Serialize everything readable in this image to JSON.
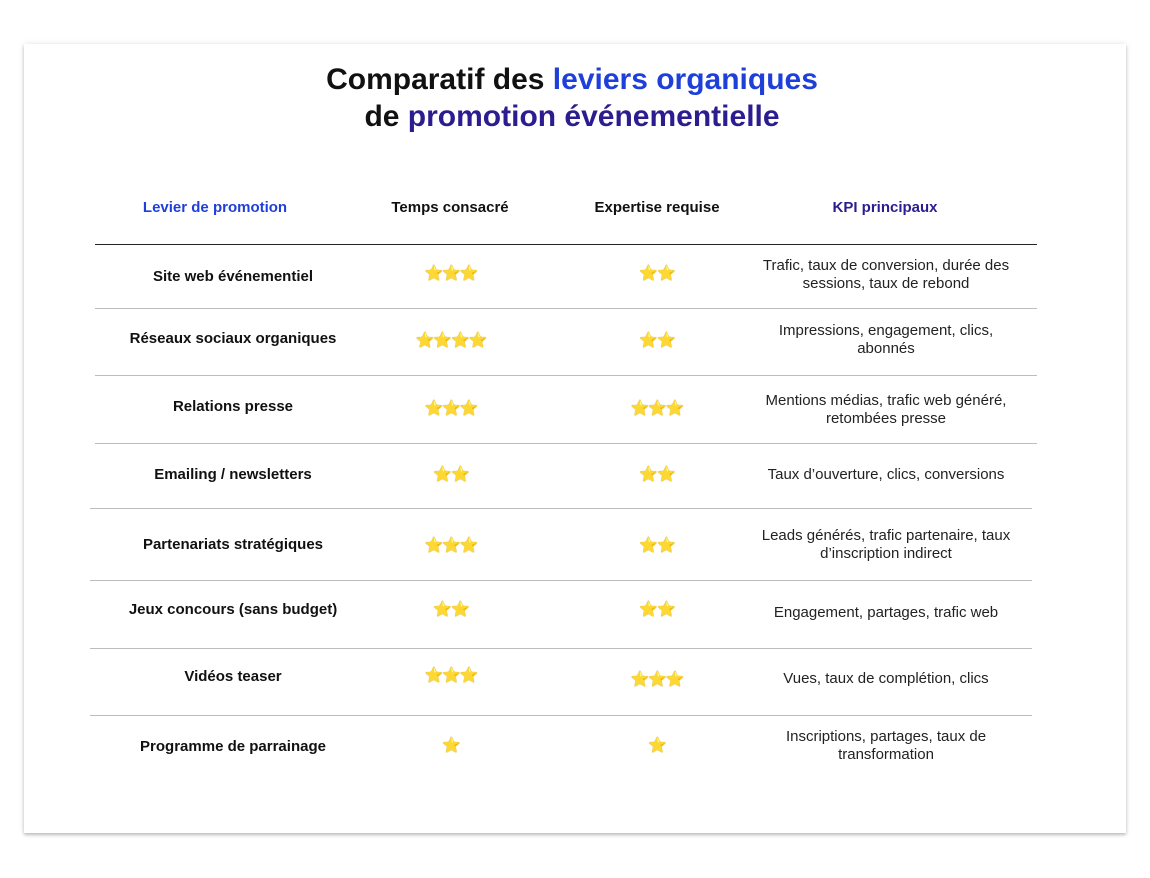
{
  "title": {
    "line1_prefix": "Comparatif des ",
    "line1_highlight": "leviers organiques",
    "line2_prefix": "de ",
    "line2_highlight": "promotion événementielle"
  },
  "table": {
    "headers": {
      "lever": "Levier de promotion",
      "time": "Temps consacré",
      "expertise": "Expertise requise",
      "kpi": "KPI principaux"
    },
    "rows": [
      {
        "lever": "Site web événementiel",
        "time": "⭐⭐⭐",
        "expertise": "⭐⭐",
        "kpi": "Trafic, taux de conversion, durée des sessions, taux de rebond"
      },
      {
        "lever": "Réseaux sociaux organiques",
        "time": "⭐⭐⭐⭐",
        "expertise": "⭐⭐",
        "kpi": "Impressions, engagement, clics, abonnés"
      },
      {
        "lever": "Relations presse",
        "time": "⭐⭐⭐",
        "expertise": "⭐⭐⭐",
        "kpi": "Mentions médias, trafic web généré, retombées presse"
      },
      {
        "lever": "Emailing / newsletters",
        "time": "⭐⭐",
        "expertise": "⭐⭐",
        "kpi": "Taux d’ouverture, clics, conversions"
      },
      {
        "lever": "Partenariats stratégiques",
        "time": "⭐⭐⭐",
        "expertise": "⭐⭐",
        "kpi": "Leads générés, trafic partenaire, taux d’inscription indirect"
      },
      {
        "lever": "Jeux concours (sans budget)",
        "time": "⭐⭐",
        "expertise": "⭐⭐",
        "kpi": "Engagement, partages, trafic web"
      },
      {
        "lever": "Vidéos teaser",
        "time": "⭐⭐⭐",
        "expertise": "⭐⭐⭐",
        "kpi": "Vues, taux de complétion, clics"
      },
      {
        "lever": "Programme de parrainage",
        "time": "⭐",
        "expertise": "⭐",
        "kpi": "Inscriptions, partages, taux de transformation"
      }
    ]
  }
}
